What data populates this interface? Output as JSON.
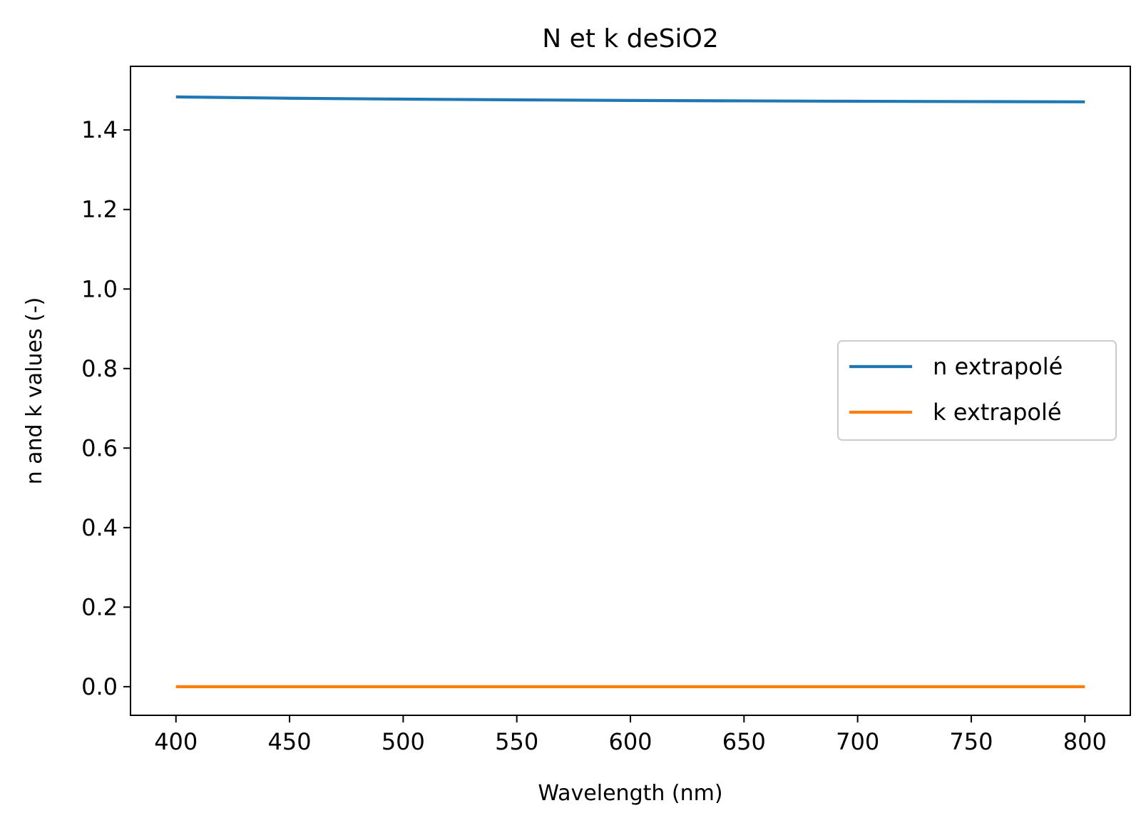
{
  "chart_data": {
    "type": "line",
    "title": "N et k deSiO2",
    "xlabel": "Wavelength (nm)",
    "ylabel": "n and k values (-)",
    "xlim": [
      380,
      820
    ],
    "ylim": [
      -0.072,
      1.56
    ],
    "xticks": [
      400,
      450,
      500,
      550,
      600,
      650,
      700,
      750,
      800
    ],
    "yticks": [
      0.0,
      0.2,
      0.4,
      0.6,
      0.8,
      1.0,
      1.2,
      1.4
    ],
    "ytick_labels": [
      "0.0",
      "0.2",
      "0.4",
      "0.6",
      "0.8",
      "1.0",
      "1.2",
      "1.4"
    ],
    "grid": false,
    "legend_position": "center-right",
    "series": [
      {
        "name": "n extrapolé",
        "color": "#1f77b4",
        "x": [
          400,
          450,
          500,
          550,
          600,
          650,
          700,
          750,
          800
        ],
        "y": [
          1.4831,
          1.4798,
          1.4775,
          1.4757,
          1.4742,
          1.4731,
          1.4721,
          1.4713,
          1.4707
        ]
      },
      {
        "name": "k extrapolé",
        "color": "#ff7f0e",
        "x": [
          400,
          450,
          500,
          550,
          600,
          650,
          700,
          750,
          800
        ],
        "y": [
          0,
          0,
          0,
          0,
          0,
          0,
          0,
          0,
          0
        ]
      }
    ]
  }
}
